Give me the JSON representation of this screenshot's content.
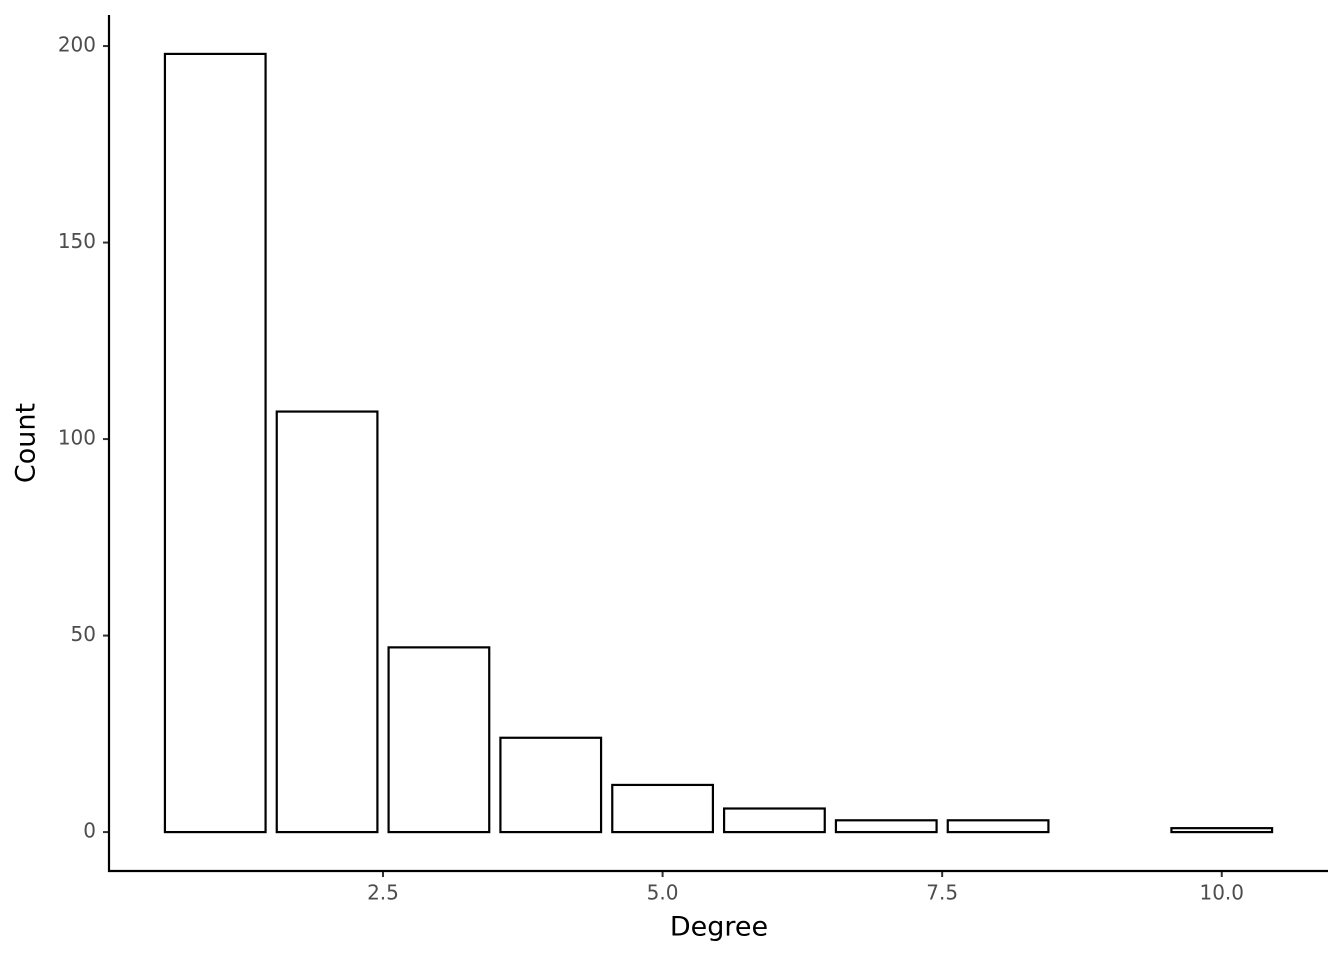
{
  "chart_data": {
    "type": "bar",
    "x_label": "Degree",
    "y_label": "Count",
    "x": [
      1,
      2,
      3,
      4,
      5,
      6,
      7,
      8,
      10
    ],
    "values": [
      198,
      107,
      47,
      24,
      12,
      6,
      3,
      3,
      1
    ],
    "color": "#ffffff",
    "edge_color": "#000000",
    "xlim": [
      0.05,
      10.95
    ],
    "xticks": [
      2.5,
      {
        "value": 5,
        "label": "5.0"
      },
      7.5,
      {
        "value": 10,
        "label": "10.0"
      }
    ],
    "ylim": [
      -9.9,
      207.9
    ],
    "yticks": [
      0,
      50,
      100,
      150,
      200
    ],
    "grid": false
  }
}
